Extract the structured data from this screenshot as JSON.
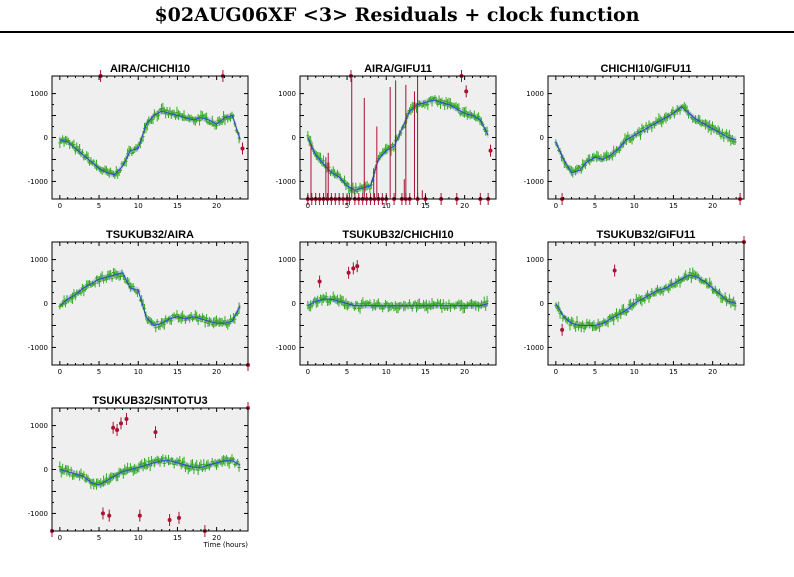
{
  "page": {
    "title": "$02AUG06XF <3> Residuals + clock function",
    "xlabel": "Time (hours)"
  },
  "colors": {
    "panel_bg": "#efefef",
    "good_points": "#33aa22",
    "flagged_points": "#aa1133",
    "model_line": "#3344cc",
    "model_band": "#c8c8f0"
  },
  "chart_data": [
    {
      "type": "scatter",
      "title": "AIRA/CHICHI10",
      "xlim": [
        -1,
        24
      ],
      "ylim": [
        -1400,
        1400
      ],
      "xticks": [
        0,
        5,
        10,
        15,
        20
      ],
      "yticks": [
        -1000,
        0,
        1000
      ],
      "model": [
        [
          0,
          -50
        ],
        [
          1,
          -100
        ],
        [
          2,
          -250
        ],
        [
          3,
          -400
        ],
        [
          4,
          -550
        ],
        [
          5,
          -700
        ],
        [
          6,
          -800
        ],
        [
          7,
          -850
        ],
        [
          8,
          -650
        ],
        [
          9,
          -300
        ],
        [
          10,
          -250
        ],
        [
          11,
          300
        ],
        [
          12,
          500
        ],
        [
          13,
          600
        ],
        [
          14,
          550
        ],
        [
          15,
          500
        ],
        [
          16,
          450
        ],
        [
          17,
          400
        ],
        [
          18,
          450
        ],
        [
          19,
          400
        ],
        [
          20,
          300
        ],
        [
          21,
          450
        ],
        [
          22,
          500
        ],
        [
          23,
          -50
        ]
      ],
      "flagged": [
        [
          5.2,
          1400
        ],
        [
          20.8,
          1400
        ],
        [
          23.3,
          -250
        ]
      ]
    },
    {
      "type": "scatter",
      "title": "AIRA/GIFU11",
      "xlim": [
        -1,
        24
      ],
      "ylim": [
        -1400,
        1400
      ],
      "xticks": [
        0,
        5,
        10,
        15,
        20
      ],
      "yticks": [
        -1000,
        0,
        1000
      ],
      "model": [
        [
          0,
          0
        ],
        [
          1,
          -400
        ],
        [
          2,
          -600
        ],
        [
          3,
          -800
        ],
        [
          4,
          -900
        ],
        [
          5,
          -1100
        ],
        [
          6,
          -1200
        ],
        [
          7,
          -1150
        ],
        [
          8,
          -1100
        ],
        [
          9,
          -500
        ],
        [
          10,
          -300
        ],
        [
          11,
          -200
        ],
        [
          12,
          200
        ],
        [
          13,
          600
        ],
        [
          14,
          750
        ],
        [
          15,
          800
        ],
        [
          16,
          850
        ],
        [
          17,
          800
        ],
        [
          18,
          750
        ],
        [
          19,
          650
        ],
        [
          20,
          550
        ],
        [
          21,
          500
        ],
        [
          22,
          400
        ],
        [
          23,
          50
        ]
      ],
      "flagged": [
        [
          0,
          -1400
        ],
        [
          0.5,
          -1400
        ],
        [
          1,
          -1400
        ],
        [
          1.5,
          -1400
        ],
        [
          2,
          -1400
        ],
        [
          2.5,
          -1400
        ],
        [
          3,
          -1400
        ],
        [
          3.5,
          -1400
        ],
        [
          4,
          -1400
        ],
        [
          4.5,
          -1400
        ],
        [
          5,
          -1400
        ],
        [
          5.3,
          -1400
        ],
        [
          6,
          -1400
        ],
        [
          6.5,
          -1400
        ],
        [
          7,
          -1400
        ],
        [
          7.5,
          -1400
        ],
        [
          8,
          -1400
        ],
        [
          8.5,
          -1400
        ],
        [
          9,
          -1400
        ],
        [
          9.5,
          -1400
        ],
        [
          10,
          -1400
        ],
        [
          11,
          -1400
        ],
        [
          12,
          -1400
        ],
        [
          12.5,
          -1400
        ],
        [
          13,
          -1400
        ],
        [
          14,
          -1400
        ],
        [
          15,
          -1400
        ],
        [
          17,
          -1400
        ],
        [
          19,
          -1400
        ],
        [
          22,
          -1400
        ],
        [
          23,
          -1400
        ],
        [
          5.5,
          1400
        ],
        [
          19.6,
          1400
        ],
        [
          20.2,
          1050
        ],
        [
          23.3,
          -300
        ]
      ],
      "spikes": [
        [
          0.4,
          -1400,
          -150
        ],
        [
          2.3,
          -1400,
          -450
        ],
        [
          2.6,
          -1400,
          -350
        ],
        [
          5.6,
          -1400,
          1350
        ],
        [
          7.2,
          -1400,
          900
        ],
        [
          8.4,
          -1400,
          -700
        ],
        [
          8.8,
          -1400,
          250
        ],
        [
          10.5,
          -1400,
          1150
        ],
        [
          11.2,
          -1400,
          1300
        ],
        [
          12.5,
          -1400,
          1200
        ],
        [
          13.6,
          -1400,
          1050
        ],
        [
          14,
          -1400,
          1350
        ],
        [
          14.6,
          -1400,
          -1200
        ],
        [
          12.3,
          -1400,
          -950
        ]
      ]
    },
    {
      "type": "scatter",
      "title": "CHICHI10/GIFU11",
      "xlim": [
        -1,
        24
      ],
      "ylim": [
        -1400,
        1400
      ],
      "xticks": [
        0,
        5,
        10,
        15,
        20
      ],
      "yticks": [
        -1000,
        0,
        1000
      ],
      "model": [
        [
          0,
          -100
        ],
        [
          1,
          -500
        ],
        [
          2,
          -800
        ],
        [
          3,
          -750
        ],
        [
          4,
          -550
        ],
        [
          5,
          -450
        ],
        [
          6,
          -500
        ],
        [
          7,
          -400
        ],
        [
          8,
          -250
        ],
        [
          9,
          -50
        ],
        [
          10,
          50
        ],
        [
          11,
          150
        ],
        [
          12,
          250
        ],
        [
          13,
          350
        ],
        [
          14,
          450
        ],
        [
          15,
          550
        ],
        [
          16,
          700
        ],
        [
          17,
          550
        ],
        [
          18,
          400
        ],
        [
          19,
          300
        ],
        [
          20,
          200
        ],
        [
          21,
          100
        ],
        [
          22,
          0
        ],
        [
          23,
          -50
        ]
      ],
      "flagged": [
        [
          0.8,
          -1400
        ],
        [
          23.5,
          -1400
        ]
      ]
    },
    {
      "type": "scatter",
      "title": "TSUKUB32/AIRA",
      "xlim": [
        -1,
        24
      ],
      "ylim": [
        -1400,
        1400
      ],
      "xticks": [
        0,
        5,
        10,
        15,
        20
      ],
      "yticks": [
        -1000,
        0,
        1000
      ],
      "model": [
        [
          0,
          -50
        ],
        [
          1,
          100
        ],
        [
          2,
          200
        ],
        [
          3,
          350
        ],
        [
          4,
          450
        ],
        [
          5,
          550
        ],
        [
          6,
          600
        ],
        [
          7,
          650
        ],
        [
          8,
          700
        ],
        [
          9,
          350
        ],
        [
          10,
          300
        ],
        [
          11,
          -300
        ],
        [
          12,
          -500
        ],
        [
          13,
          -450
        ],
        [
          14,
          -350
        ],
        [
          15,
          -300
        ],
        [
          16,
          -350
        ],
        [
          17,
          -300
        ],
        [
          18,
          -350
        ],
        [
          19,
          -400
        ],
        [
          20,
          -450
        ],
        [
          21,
          -450
        ],
        [
          22,
          -400
        ],
        [
          23,
          -50
        ]
      ],
      "flagged": [
        [
          24,
          -1400
        ]
      ]
    },
    {
      "type": "scatter",
      "title": "TSUKUB32/CHICHI10",
      "xlim": [
        -1,
        24
      ],
      "ylim": [
        -1400,
        1400
      ],
      "xticks": [
        0,
        5,
        10,
        15,
        20
      ],
      "yticks": [
        -1000,
        0,
        1000
      ],
      "model": [
        [
          0,
          -50
        ],
        [
          1,
          50
        ],
        [
          2,
          100
        ],
        [
          3,
          100
        ],
        [
          4,
          50
        ],
        [
          5,
          0
        ],
        [
          6,
          -50
        ],
        [
          7,
          -50
        ],
        [
          8,
          -50
        ],
        [
          9,
          -50
        ],
        [
          10,
          -50
        ],
        [
          11,
          -50
        ],
        [
          12,
          -50
        ],
        [
          13,
          -50
        ],
        [
          14,
          -50
        ],
        [
          15,
          -50
        ],
        [
          16,
          -50
        ],
        [
          17,
          -50
        ],
        [
          18,
          -50
        ],
        [
          19,
          -50
        ],
        [
          20,
          -50
        ],
        [
          21,
          -50
        ],
        [
          22,
          -50
        ],
        [
          23,
          0
        ]
      ],
      "flagged": [
        [
          1.5,
          500
        ],
        [
          5.2,
          700
        ],
        [
          5.8,
          800
        ],
        [
          6.3,
          850
        ]
      ]
    },
    {
      "type": "scatter",
      "title": "TSUKUB32/GIFU11",
      "xlim": [
        -1,
        24
      ],
      "ylim": [
        -1400,
        1400
      ],
      "xticks": [
        0,
        5,
        10,
        15,
        20
      ],
      "yticks": [
        -1000,
        0,
        1000
      ],
      "model": [
        [
          0,
          0
        ],
        [
          1,
          -300
        ],
        [
          2,
          -450
        ],
        [
          3,
          -500
        ],
        [
          4,
          -500
        ],
        [
          5,
          -500
        ],
        [
          6,
          -450
        ],
        [
          7,
          -350
        ],
        [
          8,
          -250
        ],
        [
          9,
          -150
        ],
        [
          10,
          0
        ],
        [
          11,
          100
        ],
        [
          12,
          200
        ],
        [
          13,
          300
        ],
        [
          14,
          350
        ],
        [
          15,
          450
        ],
        [
          16,
          550
        ],
        [
          17,
          650
        ],
        [
          18,
          600
        ],
        [
          19,
          500
        ],
        [
          20,
          350
        ],
        [
          21,
          200
        ],
        [
          22,
          50
        ],
        [
          23,
          0
        ]
      ],
      "flagged": [
        [
          0.8,
          -600
        ],
        [
          7.5,
          750
        ],
        [
          24,
          1400
        ]
      ]
    },
    {
      "type": "scatter",
      "title": "TSUKUB32/SINTOTU3",
      "xlim": [
        -1,
        24
      ],
      "ylim": [
        -1400,
        1400
      ],
      "xticks": [
        0,
        5,
        10,
        15,
        20
      ],
      "yticks": [
        -1000,
        0,
        1000
      ],
      "model": [
        [
          0,
          0
        ],
        [
          1,
          -50
        ],
        [
          2,
          -100
        ],
        [
          3,
          -150
        ],
        [
          4,
          -300
        ],
        [
          5,
          -350
        ],
        [
          6,
          -250
        ],
        [
          7,
          -150
        ],
        [
          8,
          -50
        ],
        [
          9,
          0
        ],
        [
          10,
          50
        ],
        [
          11,
          100
        ],
        [
          12,
          150
        ],
        [
          13,
          200
        ],
        [
          14,
          200
        ],
        [
          15,
          150
        ],
        [
          16,
          100
        ],
        [
          17,
          50
        ],
        [
          18,
          50
        ],
        [
          19,
          100
        ],
        [
          20,
          150
        ],
        [
          21,
          200
        ],
        [
          22,
          200
        ],
        [
          23,
          100
        ]
      ],
      "flagged": [
        [
          -1,
          -1400
        ],
        [
          6.8,
          950
        ],
        [
          7.3,
          900
        ],
        [
          7.8,
          1050
        ],
        [
          8.5,
          1150
        ],
        [
          12.2,
          850
        ],
        [
          5.5,
          -1000
        ],
        [
          6.3,
          -1050
        ],
        [
          10.2,
          -1050
        ],
        [
          14,
          -1150
        ],
        [
          15.2,
          -1100
        ],
        [
          18.5,
          -1400
        ],
        [
          24,
          1400
        ]
      ]
    }
  ]
}
